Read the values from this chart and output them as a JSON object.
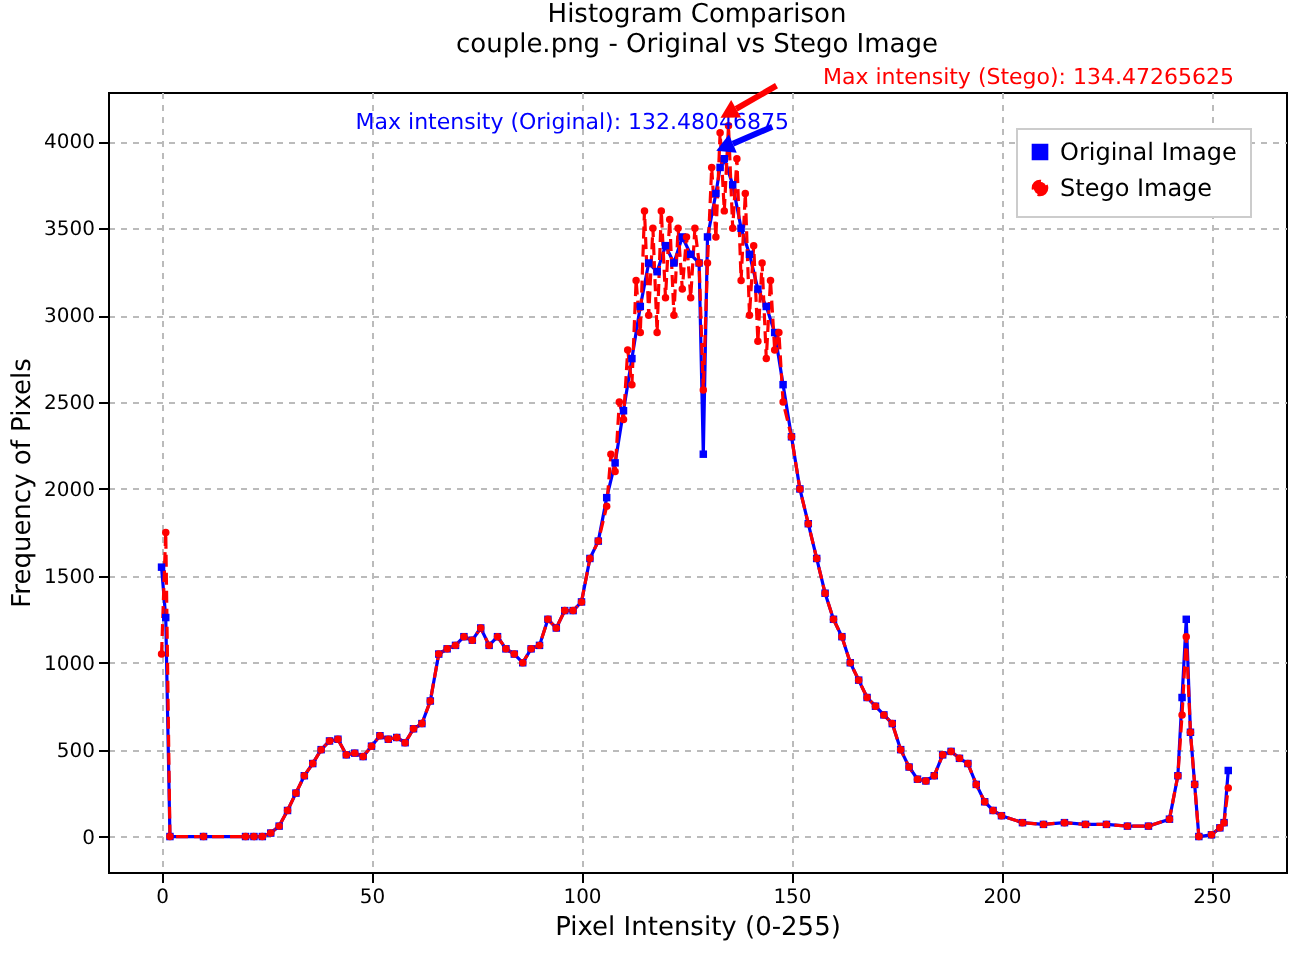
{
  "chart_data": {
    "type": "line",
    "title": "Histogram Comparison\ncouple.png - Original vs Stego Image",
    "xlabel": "Pixel Intensity (0-255)",
    "ylabel": "Frequency of Pixels",
    "xlim": [
      -12.75,
      267.75
    ],
    "ylim": [
      -204,
      4284
    ],
    "xticks": [
      0,
      50,
      100,
      150,
      200,
      250
    ],
    "yticks": [
      0,
      500,
      1000,
      1500,
      2000,
      2500,
      3000,
      3500,
      4000
    ],
    "grid": true,
    "legend": "top right",
    "annotations": [
      "Max intensity (Original): 132.48046875",
      "Max intensity (Stego): 134.47265625"
    ],
    "series": [
      {
        "name": "Original Image",
        "color": "#0000ff",
        "marker": "square",
        "line_style": "solid",
        "x": [
          0,
          1,
          2,
          10,
          20,
          22,
          24,
          26,
          28,
          30,
          32,
          34,
          36,
          38,
          40,
          42,
          44,
          46,
          48,
          50,
          52,
          54,
          56,
          58,
          60,
          62,
          64,
          66,
          68,
          70,
          72,
          74,
          76,
          78,
          80,
          82,
          84,
          86,
          88,
          90,
          92,
          94,
          96,
          98,
          100,
          102,
          104,
          106,
          108,
          110,
          112,
          114,
          116,
          118,
          120,
          122,
          124,
          126,
          128,
          129,
          130,
          132,
          133,
          134,
          136,
          138,
          140,
          142,
          144,
          146,
          148,
          150,
          152,
          154,
          156,
          158,
          160,
          162,
          164,
          166,
          168,
          170,
          172,
          174,
          176,
          178,
          180,
          182,
          184,
          186,
          188,
          190,
          192,
          194,
          196,
          198,
          200,
          205,
          210,
          215,
          220,
          225,
          230,
          235,
          240,
          242,
          243,
          244,
          245,
          246,
          247,
          250,
          252,
          253,
          254
        ],
        "values": [
          1550,
          1260,
          0,
          0,
          0,
          0,
          0,
          20,
          60,
          150,
          250,
          350,
          420,
          500,
          550,
          560,
          470,
          480,
          460,
          520,
          580,
          560,
          570,
          540,
          620,
          650,
          780,
          1050,
          1080,
          1100,
          1150,
          1130,
          1200,
          1100,
          1150,
          1080,
          1050,
          1000,
          1080,
          1100,
          1250,
          1200,
          1300,
          1300,
          1350,
          1600,
          1700,
          1950,
          2150,
          2450,
          2750,
          3050,
          3300,
          3250,
          3400,
          3300,
          3450,
          3350,
          3300,
          2200,
          3450,
          3700,
          3850,
          3900,
          3750,
          3500,
          3350,
          3150,
          3050,
          2900,
          2600,
          2300,
          2000,
          1800,
          1600,
          1400,
          1250,
          1150,
          1000,
          900,
          800,
          750,
          700,
          650,
          500,
          400,
          330,
          320,
          350,
          470,
          490,
          450,
          420,
          300,
          200,
          150,
          120,
          80,
          70,
          80,
          70,
          70,
          60,
          60,
          100,
          350,
          800,
          1250,
          600,
          300,
          0,
          10,
          50,
          80,
          380
        ]
      },
      {
        "name": "Stego Image",
        "color": "#ff0000",
        "marker": "circle",
        "line_style": "dashed",
        "x": [
          0,
          1,
          2,
          10,
          20,
          22,
          24,
          26,
          28,
          30,
          32,
          34,
          36,
          38,
          40,
          42,
          44,
          46,
          48,
          50,
          52,
          54,
          56,
          58,
          60,
          62,
          64,
          66,
          68,
          70,
          72,
          74,
          76,
          78,
          80,
          82,
          84,
          86,
          88,
          90,
          92,
          94,
          96,
          98,
          100,
          102,
          104,
          106,
          107,
          108,
          109,
          110,
          111,
          112,
          113,
          114,
          115,
          116,
          117,
          118,
          119,
          120,
          121,
          122,
          123,
          124,
          125,
          126,
          127,
          128,
          129,
          130,
          131,
          132,
          133,
          134,
          135,
          136,
          137,
          138,
          139,
          140,
          141,
          142,
          143,
          144,
          145,
          146,
          147,
          148,
          150,
          152,
          154,
          156,
          158,
          160,
          162,
          164,
          166,
          168,
          170,
          172,
          174,
          176,
          178,
          180,
          182,
          184,
          186,
          188,
          190,
          192,
          194,
          196,
          198,
          200,
          205,
          210,
          215,
          220,
          225,
          230,
          235,
          240,
          242,
          243,
          244,
          245,
          246,
          247,
          250,
          252,
          253,
          254
        ],
        "values": [
          1050,
          1750,
          0,
          0,
          0,
          0,
          0,
          20,
          60,
          150,
          250,
          350,
          420,
          500,
          550,
          560,
          470,
          480,
          460,
          520,
          580,
          560,
          570,
          540,
          620,
          650,
          780,
          1050,
          1080,
          1100,
          1150,
          1130,
          1200,
          1100,
          1150,
          1080,
          1050,
          1000,
          1080,
          1100,
          1250,
          1200,
          1300,
          1300,
          1350,
          1600,
          1700,
          1900,
          2200,
          2100,
          2500,
          2400,
          2800,
          2600,
          3200,
          2900,
          3600,
          3000,
          3500,
          2900,
          3600,
          3100,
          3550,
          3000,
          3500,
          3150,
          3450,
          3100,
          3500,
          3300,
          2570,
          3300,
          3850,
          3450,
          4050,
          3600,
          4090,
          3500,
          3900,
          3200,
          3700,
          3000,
          3400,
          2850,
          3300,
          2750,
          3200,
          2800,
          2900,
          2500,
          2300,
          2000,
          1800,
          1600,
          1400,
          1250,
          1150,
          1000,
          900,
          800,
          750,
          700,
          650,
          500,
          400,
          330,
          320,
          350,
          470,
          490,
          450,
          420,
          300,
          200,
          150,
          120,
          80,
          70,
          80,
          70,
          70,
          60,
          60,
          100,
          350,
          700,
          1150,
          600,
          300,
          0,
          10,
          50,
          80,
          280
        ]
      }
    ]
  }
}
